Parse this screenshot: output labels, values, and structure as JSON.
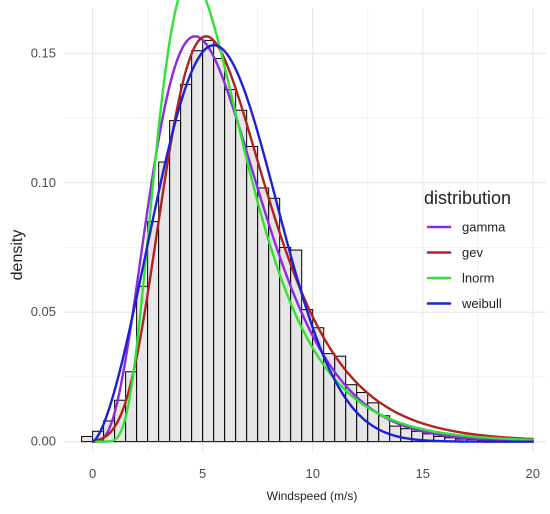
{
  "chart_data": {
    "type": "histogram-with-density-curves",
    "xlabel": "Windspeed (m/s)",
    "ylabel": "density",
    "xlim": [
      -1.3,
      20.6
    ],
    "ylim": [
      -0.004,
      0.1675
    ],
    "x_ticks": [
      0,
      5,
      10,
      15,
      20
    ],
    "x_tick_labels": [
      "0",
      "5",
      "10",
      "15",
      "20"
    ],
    "y_ticks": [
      0.0,
      0.05,
      0.1,
      0.15
    ],
    "y_tick_labels": [
      "0.00",
      "0.05",
      "0.10",
      "0.15"
    ],
    "grid": true,
    "legend": {
      "title": "distribution",
      "position": "right"
    },
    "histogram": {
      "bin_width": 0.5,
      "fill": "#e6e6e6",
      "stroke": "#000000",
      "bins": [
        {
          "x": -0.25,
          "density": 0.002
        },
        {
          "x": 0.25,
          "density": 0.004
        },
        {
          "x": 0.75,
          "density": 0.008
        },
        {
          "x": 1.25,
          "density": 0.016
        },
        {
          "x": 1.75,
          "density": 0.027
        },
        {
          "x": 2.25,
          "density": 0.06
        },
        {
          "x": 2.75,
          "density": 0.085
        },
        {
          "x": 3.25,
          "density": 0.108
        },
        {
          "x": 3.75,
          "density": 0.124
        },
        {
          "x": 4.25,
          "density": 0.138
        },
        {
          "x": 4.75,
          "density": 0.151
        },
        {
          "x": 5.25,
          "density": 0.155
        },
        {
          "x": 5.75,
          "density": 0.148
        },
        {
          "x": 6.25,
          "density": 0.136
        },
        {
          "x": 6.75,
          "density": 0.128
        },
        {
          "x": 7.25,
          "density": 0.114
        },
        {
          "x": 7.75,
          "density": 0.098
        },
        {
          "x": 8.25,
          "density": 0.094
        },
        {
          "x": 8.75,
          "density": 0.075
        },
        {
          "x": 9.25,
          "density": 0.074
        },
        {
          "x": 9.75,
          "density": 0.051
        },
        {
          "x": 10.25,
          "density": 0.044
        },
        {
          "x": 10.75,
          "density": 0.034
        },
        {
          "x": 11.25,
          "density": 0.033
        },
        {
          "x": 11.75,
          "density": 0.022
        },
        {
          "x": 12.25,
          "density": 0.019
        },
        {
          "x": 12.75,
          "density": 0.015
        },
        {
          "x": 13.25,
          "density": 0.01
        },
        {
          "x": 13.75,
          "density": 0.006
        },
        {
          "x": 14.25,
          "density": 0.005
        },
        {
          "x": 14.75,
          "density": 0.004
        },
        {
          "x": 15.25,
          "density": 0.003
        },
        {
          "x": 15.75,
          "density": 0.002
        },
        {
          "x": 16.25,
          "density": 0.0015
        },
        {
          "x": 16.75,
          "density": 0.001
        },
        {
          "x": 17.25,
          "density": 0.0008
        },
        {
          "x": 17.75,
          "density": 0.0006
        },
        {
          "x": 18.25,
          "density": 0.0004
        },
        {
          "x": 18.75,
          "density": 0.0003
        },
        {
          "x": 19.25,
          "density": 0.0002
        },
        {
          "x": 19.75,
          "density": 0.0001
        }
      ]
    },
    "series": [
      {
        "name": "gamma",
        "color": "#8a2be2",
        "distribution": "gamma",
        "params": {
          "shape": 4.5,
          "scale": 1.33
        }
      },
      {
        "name": "gev",
        "color": "#b22222",
        "distribution": "gev",
        "params": {
          "location": 5.2,
          "scale": 2.35,
          "shape": 0.02
        }
      },
      {
        "name": "lnorm",
        "color": "#32e232",
        "distribution": "lnorm",
        "params": {
          "meanlog": 1.7,
          "sdlog": 0.45
        }
      },
      {
        "name": "weibull",
        "color": "#1f1fd6",
        "distribution": "weibull",
        "params": {
          "shape": 2.55,
          "scale": 6.7
        }
      }
    ]
  }
}
